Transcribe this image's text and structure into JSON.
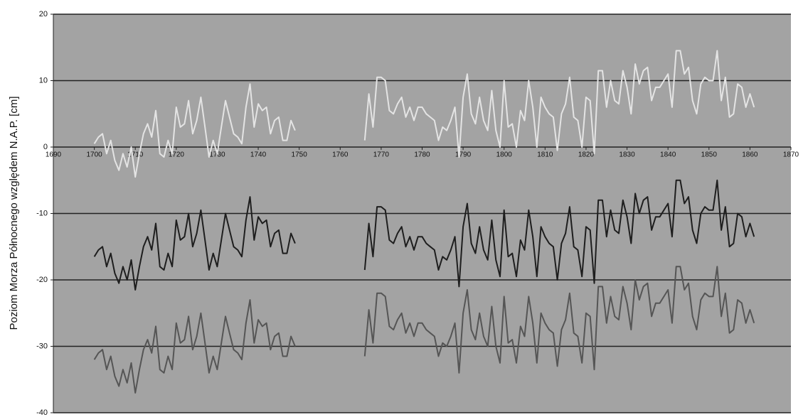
{
  "chart_data": {
    "type": "line",
    "y_label": "Poziom Morza Północnego względem N.A.P. [cm]",
    "xlim": [
      1690,
      1870
    ],
    "xticks": [
      1690,
      1700,
      1710,
      1720,
      1730,
      1740,
      1750,
      1760,
      1770,
      1780,
      1790,
      1800,
      1810,
      1820,
      1830,
      1840,
      1850,
      1860,
      1870
    ],
    "ylim": [
      -40,
      20
    ],
    "yticks": [
      -40,
      -30,
      -20,
      -10,
      0,
      10,
      20
    ],
    "grid": true,
    "x": [
      1700,
      1701,
      1702,
      1703,
      1704,
      1705,
      1706,
      1707,
      1708,
      1709,
      1710,
      1711,
      1712,
      1713,
      1714,
      1715,
      1716,
      1717,
      1718,
      1719,
      1720,
      1721,
      1722,
      1723,
      1724,
      1725,
      1726,
      1727,
      1728,
      1729,
      1730,
      1731,
      1732,
      1733,
      1734,
      1735,
      1736,
      1737,
      1738,
      1739,
      1740,
      1741,
      1742,
      1743,
      1744,
      1745,
      1746,
      1747,
      1748,
      1749,
      1750,
      1751,
      1752,
      1753,
      1754,
      1755,
      1756,
      1757,
      1758,
      1759,
      1760,
      1761,
      1762,
      1763,
      1764,
      1765,
      1766,
      1767,
      1768,
      1769,
      1770,
      1771,
      1772,
      1773,
      1774,
      1775,
      1776,
      1777,
      1778,
      1779,
      1780,
      1781,
      1782,
      1783,
      1784,
      1785,
      1786,
      1787,
      1788,
      1789,
      1790,
      1791,
      1792,
      1793,
      1794,
      1795,
      1796,
      1797,
      1798,
      1799,
      1800,
      1801,
      1802,
      1803,
      1804,
      1805,
      1806,
      1807,
      1808,
      1809,
      1810,
      1811,
      1812,
      1813,
      1814,
      1815,
      1816,
      1817,
      1818,
      1819,
      1820,
      1821,
      1822,
      1823,
      1824,
      1825,
      1826,
      1827,
      1828,
      1829,
      1830,
      1831,
      1832,
      1833,
      1834,
      1835,
      1836,
      1837,
      1838,
      1839,
      1840,
      1841,
      1842,
      1843,
      1844,
      1845,
      1846,
      1847,
      1848,
      1849,
      1850,
      1851,
      1852,
      1853,
      1854,
      1855,
      1856,
      1857,
      1858,
      1859,
      1860,
      1861
    ],
    "series": [
      {
        "color": "#e4e4e4",
        "values": [
          0.5,
          1.5,
          2,
          -1,
          1,
          -2,
          -3.5,
          -1,
          -3,
          0,
          -4.5,
          -1,
          2,
          3.5,
          1.5,
          5.5,
          -1,
          -1.5,
          1,
          -1,
          6,
          3,
          3.5,
          7,
          2,
          4,
          7.5,
          3,
          -1.5,
          1,
          -1,
          3,
          7,
          4.5,
          2,
          1.5,
          0.5,
          6,
          9.5,
          3,
          6.5,
          5.5,
          6,
          2,
          4,
          4.5,
          1,
          1,
          4,
          2.5,
          null,
          null,
          null,
          null,
          null,
          null,
          null,
          null,
          null,
          null,
          null,
          null,
          null,
          null,
          null,
          null,
          1,
          8,
          3,
          10.5,
          10.5,
          10,
          5.5,
          5,
          6.5,
          7.5,
          4.5,
          6,
          4,
          6,
          6,
          5,
          4.5,
          4,
          1,
          3,
          2.5,
          4,
          6,
          -1.5,
          7.5,
          11,
          5,
          3.5,
          7.5,
          4,
          2.5,
          8.5,
          2.5,
          0,
          10,
          3,
          3.5,
          0,
          5.5,
          4,
          10,
          6,
          0,
          7.5,
          6,
          5,
          4.5,
          -0.5,
          5,
          6.5,
          10.5,
          4.5,
          4,
          0,
          7.5,
          7,
          -1,
          11.5,
          11.5,
          6,
          10,
          7,
          6.5,
          11.5,
          9,
          5,
          12.5,
          9.5,
          11.5,
          12,
          7,
          9,
          9,
          10,
          11,
          6,
          14.5,
          14.5,
          11,
          12,
          7,
          5,
          9.5,
          10.5,
          10,
          10,
          14.5,
          7,
          10.5,
          4.5,
          5,
          9.5,
          9,
          6,
          8,
          6
        ]
      },
      {
        "color": "#1e1e1e",
        "values": [
          -16.5,
          -15.5,
          -15,
          -18,
          -16,
          -19,
          -20.5,
          -18,
          -20,
          -17,
          -21.5,
          -18,
          -15,
          -13.5,
          -15.5,
          -11.5,
          -18,
          -18.5,
          -16,
          -18,
          -11,
          -14,
          -13.5,
          -10,
          -15,
          -13,
          -9.5,
          -14,
          -18.5,
          -16,
          -18,
          -14,
          -10,
          -12.5,
          -15,
          -15.5,
          -16.5,
          -11,
          -7.5,
          -14,
          -10.5,
          -11.5,
          -11,
          -15,
          -13,
          -12.5,
          -16,
          -16,
          -13,
          -14.5,
          null,
          null,
          null,
          null,
          null,
          null,
          null,
          null,
          null,
          null,
          null,
          null,
          null,
          null,
          null,
          null,
          -18.5,
          -11.5,
          -16.5,
          -9,
          -9,
          -9.5,
          -14,
          -14.5,
          -13,
          -12,
          -15,
          -13.5,
          -15.5,
          -13.5,
          -13.5,
          -14.5,
          -15,
          -15.5,
          -18.5,
          -16.5,
          -17,
          -15.5,
          -13.5,
          -21,
          -12,
          -8.5,
          -14.5,
          -16,
          -12,
          -15.5,
          -17,
          -11,
          -17,
          -19.5,
          -9.5,
          -16.5,
          -16,
          -19.5,
          -14,
          -15.5,
          -9.5,
          -13.5,
          -19.5,
          -12,
          -13.5,
          -14.5,
          -15,
          -20,
          -14.5,
          -13,
          -9,
          -15,
          -15.5,
          -19.5,
          -12,
          -12.5,
          -20.5,
          -8,
          -8,
          -13.5,
          -9.5,
          -12.5,
          -13,
          -8,
          -10.5,
          -14.5,
          -7,
          -10,
          -8,
          -7.5,
          -12.5,
          -10.5,
          -10.5,
          -9.5,
          -8.5,
          -13.5,
          -5,
          -5,
          -8.5,
          -7.5,
          -12.5,
          -14.5,
          -10,
          -9,
          -9.5,
          -9.5,
          -5,
          -12.5,
          -9,
          -15,
          -14.5,
          -10,
          -10.5,
          -13.5,
          -11.5,
          -13.5
        ]
      },
      {
        "color": "#555555",
        "values": [
          -32,
          -31,
          -30.5,
          -33.5,
          -31.5,
          -34.5,
          -36,
          -33.5,
          -35.5,
          -32.5,
          -37,
          -33.5,
          -30.5,
          -29,
          -31,
          -27,
          -33.5,
          -34,
          -31.5,
          -33.5,
          -26.5,
          -29.5,
          -29,
          -25.5,
          -30.5,
          -28.5,
          -25,
          -29.5,
          -34,
          -31.5,
          -33.5,
          -29.5,
          -25.5,
          -28,
          -30.5,
          -31,
          -32,
          -26.5,
          -23,
          -29.5,
          -26,
          -27,
          -26.5,
          -30.5,
          -28.5,
          -28,
          -31.5,
          -31.5,
          -28.5,
          -30,
          null,
          null,
          null,
          null,
          null,
          null,
          null,
          null,
          null,
          null,
          null,
          null,
          null,
          null,
          null,
          null,
          -31.5,
          -24.5,
          -29.5,
          -22,
          -22,
          -22.5,
          -27,
          -27.5,
          -26,
          -25,
          -28,
          -26.5,
          -28.5,
          -26.5,
          -26.5,
          -27.5,
          -28,
          -28.5,
          -31.5,
          -29.5,
          -30,
          -28.5,
          -26.5,
          -34,
          -25,
          -21.5,
          -27.5,
          -29,
          -25,
          -28.5,
          -30,
          -24,
          -30,
          -32.5,
          -22.5,
          -29.5,
          -29,
          -32.5,
          -27,
          -28.5,
          -22.5,
          -26.5,
          -32.5,
          -25,
          -26.5,
          -27.5,
          -28,
          -33,
          -27.5,
          -26,
          -22,
          -28,
          -28.5,
          -32.5,
          -25,
          -25.5,
          -33.5,
          -21,
          -21,
          -26.5,
          -22.5,
          -25.5,
          -26,
          -21,
          -23.5,
          -27.5,
          -20,
          -23,
          -21,
          -20.5,
          -25.5,
          -23.5,
          -23.5,
          -22.5,
          -21.5,
          -26.5,
          -18,
          -18,
          -21.5,
          -20.5,
          -25.5,
          -27.5,
          -23,
          -22,
          -22.5,
          -22.5,
          -18,
          -25.5,
          -22,
          -28,
          -27.5,
          -23,
          -23.5,
          -26.5,
          -24.5,
          -26.5
        ]
      }
    ]
  }
}
